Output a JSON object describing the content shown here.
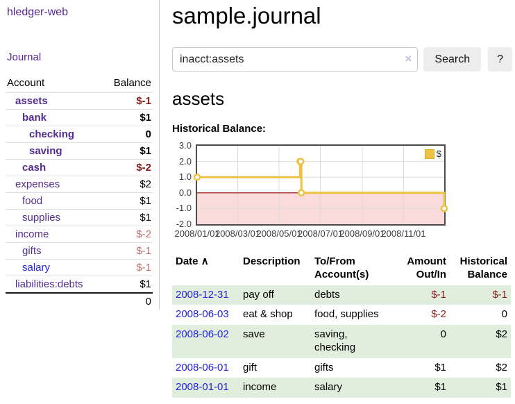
{
  "app": {
    "brand": "hledger-web"
  },
  "sidebar": {
    "nav_journal": "Journal",
    "accounts": {
      "col_account": "Account",
      "col_balance": "Balance",
      "rows": [
        {
          "name": "assets",
          "balance": "$-1",
          "indent": 1,
          "bold": true,
          "balance_tone": "negative-strong",
          "link_tone": "visited"
        },
        {
          "name": "bank",
          "balance": "$1",
          "indent": 2,
          "bold": true,
          "balance_tone": "normal",
          "link_tone": "visited"
        },
        {
          "name": "checking",
          "balance": "0",
          "indent": 3,
          "bold": true,
          "balance_tone": "normal",
          "link_tone": "visited"
        },
        {
          "name": "saving",
          "balance": "$1",
          "indent": 3,
          "bold": true,
          "balance_tone": "normal",
          "link_tone": "visited"
        },
        {
          "name": "cash",
          "balance": "$-2",
          "indent": 2,
          "bold": true,
          "balance_tone": "negative-strong",
          "link_tone": "visited"
        },
        {
          "name": "expenses",
          "balance": "$2",
          "indent": 1,
          "bold": false,
          "balance_tone": "normal",
          "link_tone": "visited"
        },
        {
          "name": "food",
          "balance": "$1",
          "indent": 2,
          "bold": false,
          "balance_tone": "normal",
          "link_tone": "visited"
        },
        {
          "name": "supplies",
          "balance": "$1",
          "indent": 2,
          "bold": false,
          "balance_tone": "normal",
          "link_tone": "visited"
        },
        {
          "name": "income",
          "balance": "$-2",
          "indent": 1,
          "bold": false,
          "balance_tone": "negative-muted",
          "link_tone": "visited"
        },
        {
          "name": "gifts",
          "balance": "$-1",
          "indent": 2,
          "bold": false,
          "balance_tone": "negative-muted",
          "link_tone": "visited"
        },
        {
          "name": "salary",
          "balance": "$-1",
          "indent": 2,
          "bold": false,
          "balance_tone": "negative-muted",
          "link_tone": "unvisited"
        },
        {
          "name": "liabilities:debts",
          "balance": "$1",
          "indent": 1,
          "bold": false,
          "balance_tone": "normal",
          "link_tone": "visited"
        }
      ],
      "total": "0"
    }
  },
  "main": {
    "title": "sample.journal",
    "search": {
      "value": "inacct:assets",
      "clear_icon": "×",
      "search_label": "Search",
      "help_label": "?"
    },
    "account_heading": "assets",
    "chart_heading": "Historical Balance:"
  },
  "chart_data": {
    "type": "line",
    "step": true,
    "title": "Historical Balance",
    "series": [
      {
        "name": "$",
        "color": "#edc240",
        "points": [
          [
            "2008/01/01",
            1
          ],
          [
            "2008/06/01",
            2
          ],
          [
            "2008/06/02",
            2
          ],
          [
            "2008/06/03",
            0
          ],
          [
            "2008/12/31",
            -1
          ]
        ]
      }
    ],
    "xrange": [
      "2008/01/01",
      "2008/12/31"
    ],
    "ylim": [
      -2,
      3
    ],
    "yticks": [
      3,
      2,
      1,
      0,
      -1,
      -2
    ],
    "ytick_labels": [
      "3.0",
      "2.0",
      "1.0",
      "0.0",
      "-1.0",
      "-2.0"
    ],
    "xticks": [
      "2008/01/01",
      "2008/03/01",
      "2008/05/01",
      "2008/07/01",
      "2008/09/01",
      "2008/11/01"
    ],
    "grid": true,
    "legend_position": "top-right",
    "marker_fill": "#ffffff",
    "negative_region_fill": "#f9dbdb",
    "zero_line_color": "#990000",
    "gridline_color": "#dcdcdc",
    "border_color": "#4d4d4d"
  },
  "register": {
    "headers": {
      "date": "Date",
      "sort_indicator": "∧",
      "description": "Description",
      "accounts": "To/From Account(s)",
      "amount": "Amount Out/In",
      "balance": "Historical Balance"
    },
    "rows": [
      {
        "date": "2008-12-31",
        "description": "pay off",
        "accounts": "debts",
        "amount": "$-1",
        "balance": "$-1"
      },
      {
        "date": "2008-06-03",
        "description": "eat & shop",
        "accounts": "food, supplies",
        "amount": "$-2",
        "balance": "0"
      },
      {
        "date": "2008-06-02",
        "description": "save",
        "accounts": "saving, checking",
        "amount": "0",
        "balance": "$2"
      },
      {
        "date": "2008-06-01",
        "description": "gift",
        "accounts": "gifts",
        "amount": "$1",
        "balance": "$2"
      },
      {
        "date": "2008-01-01",
        "description": "income",
        "accounts": "salary",
        "amount": "$1",
        "balance": "$1"
      }
    ]
  },
  "colors": {
    "link_visited_purple": "#552d90",
    "link_unvisited_blue": "#2323dd",
    "negative_strong_red": "#8b1a1a",
    "negative_muted_red": "#b96f6f",
    "row_stripe_green": "#e2eedd",
    "chart_series_yellow": "#edc240",
    "button_gray": "#ededed"
  }
}
